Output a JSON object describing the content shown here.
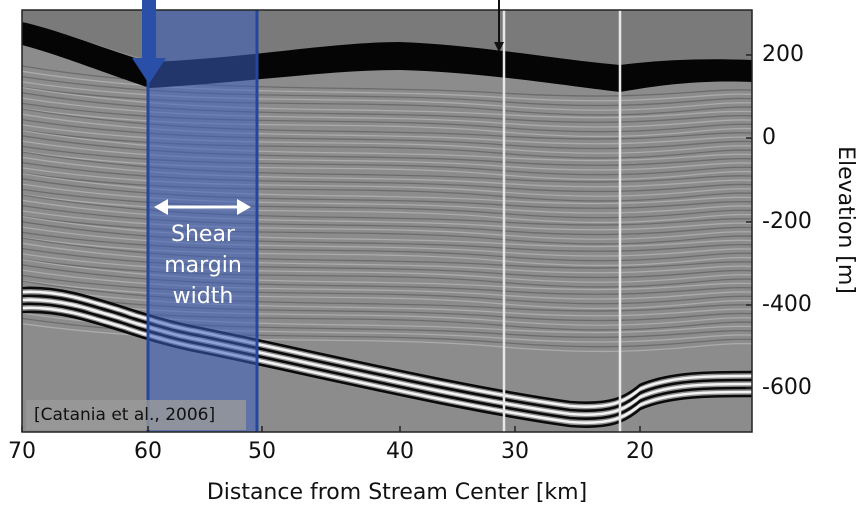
{
  "x_axis": {
    "label": "Distance from Stream Center [km]",
    "ticks": [
      "70",
      "60",
      "50",
      "40",
      "30",
      "20"
    ]
  },
  "y_axis": {
    "label": "Elevation [m]",
    "ticks": [
      "200",
      "0",
      "-200",
      "-400",
      "-600"
    ]
  },
  "annotations": {
    "shear_margin": [
      "Shear",
      "margin",
      "width"
    ],
    "citation": "[Catania et al., 2006]"
  }
}
